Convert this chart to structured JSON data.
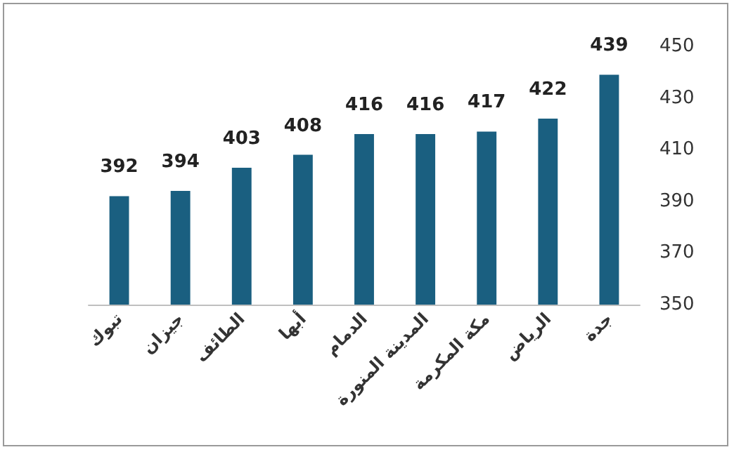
{
  "chart_data": {
    "type": "bar",
    "categories": [
      "تبوك",
      "جيزان",
      "الطائف",
      "أبها",
      "الدمام",
      "المدينة المنورة",
      "مكة المكرمة",
      "الرياض",
      "جدة"
    ],
    "values": [
      392,
      394,
      403,
      408,
      416,
      416,
      417,
      422,
      439
    ],
    "color": "#1a5f80",
    "ylim": [
      350,
      450
    ],
    "yticks": [
      350,
      370,
      390,
      410,
      430,
      450
    ],
    "grid": false,
    "data_labels": true
  }
}
